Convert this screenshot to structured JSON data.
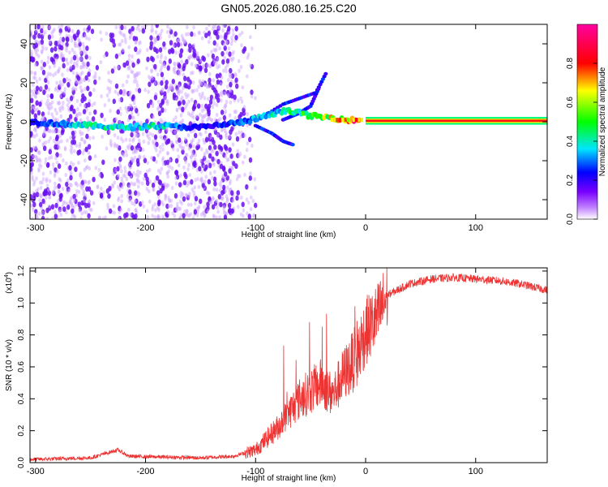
{
  "title": "GN05.2026.080.16.25.C20",
  "chart_data": [
    {
      "type": "heatmap",
      "xlabel": "Height of straight line (km)",
      "ylabel": "Frequency (Hz)",
      "xlim": [
        -305,
        165
      ],
      "ylim": [
        -50,
        50
      ],
      "xticks": [
        -300,
        -200,
        -100,
        0,
        100
      ],
      "yticks": [
        -40,
        -20,
        0,
        20,
        40
      ],
      "colorbar": {
        "label": "Normalized spectral amplitude",
        "ticks": [
          0.0,
          0.2,
          0.4,
          0.6,
          0.8
        ],
        "tick_labels": [
          "0.0",
          "0.2",
          "0.4",
          "0.6",
          "0.8"
        ],
        "colors": [
          "#ffffff",
          "#7a00ff",
          "#0000ff",
          "#00e5ff",
          "#00ff00",
          "#ffff00",
          "#ff0000",
          "#ff00a0"
        ]
      },
      "ridge": [
        {
          "x": -305,
          "y": 0,
          "amp": 0.25
        },
        {
          "x": -250,
          "y": -2,
          "amp": 0.5
        },
        {
          "x": -220,
          "y": -3,
          "amp": 0.45
        },
        {
          "x": -190,
          "y": -2,
          "amp": 0.5
        },
        {
          "x": -150,
          "y": -3,
          "amp": 0.25
        },
        {
          "x": -110,
          "y": 0,
          "amp": 0.35
        },
        {
          "x": -90,
          "y": 3,
          "amp": 0.45
        },
        {
          "x": -70,
          "y": 6,
          "amp": 0.5
        },
        {
          "x": -50,
          "y": 3,
          "amp": 0.55
        },
        {
          "x": -30,
          "y": 2,
          "amp": 0.7
        },
        {
          "x": -15,
          "y": 1,
          "amp": 0.8
        },
        {
          "x": 0,
          "y": 0.5,
          "amp": 0.95
        },
        {
          "x": 165,
          "y": 0.5,
          "amp": 0.95
        }
      ]
    },
    {
      "type": "line",
      "xlabel": "Height of straight line (km)",
      "ylabel": "SNR (10 * v/v)",
      "multiplier_label": "(x10",
      "multiplier_exp": "4",
      "multiplier_close": ")",
      "xlim": [
        -305,
        165
      ],
      "ylim": [
        0,
        1.22
      ],
      "xticks": [
        -300,
        -200,
        -100,
        0,
        100
      ],
      "yticks": [
        0.0,
        0.2,
        0.4,
        0.6,
        0.8,
        1.0,
        1.2
      ],
      "ytick_labels": [
        "0.0",
        "0.2",
        "0.4",
        "0.6",
        "0.8",
        "1.0",
        "1.2"
      ],
      "color": "#ee3333",
      "series": [
        {
          "x": [
            -305,
            -250,
            -225,
            -215,
            -150,
            -120,
            -100,
            -80,
            -60,
            -50,
            -40,
            -30,
            -20,
            -10,
            0,
            10,
            20,
            40,
            60,
            80,
            100,
            120,
            140,
            165
          ],
          "y": [
            0.02,
            0.03,
            0.08,
            0.04,
            0.03,
            0.04,
            0.08,
            0.22,
            0.4,
            0.45,
            0.5,
            0.42,
            0.55,
            0.65,
            0.82,
            0.9,
            1.05,
            1.12,
            1.15,
            1.16,
            1.15,
            1.14,
            1.12,
            1.08
          ]
        }
      ]
    }
  ]
}
